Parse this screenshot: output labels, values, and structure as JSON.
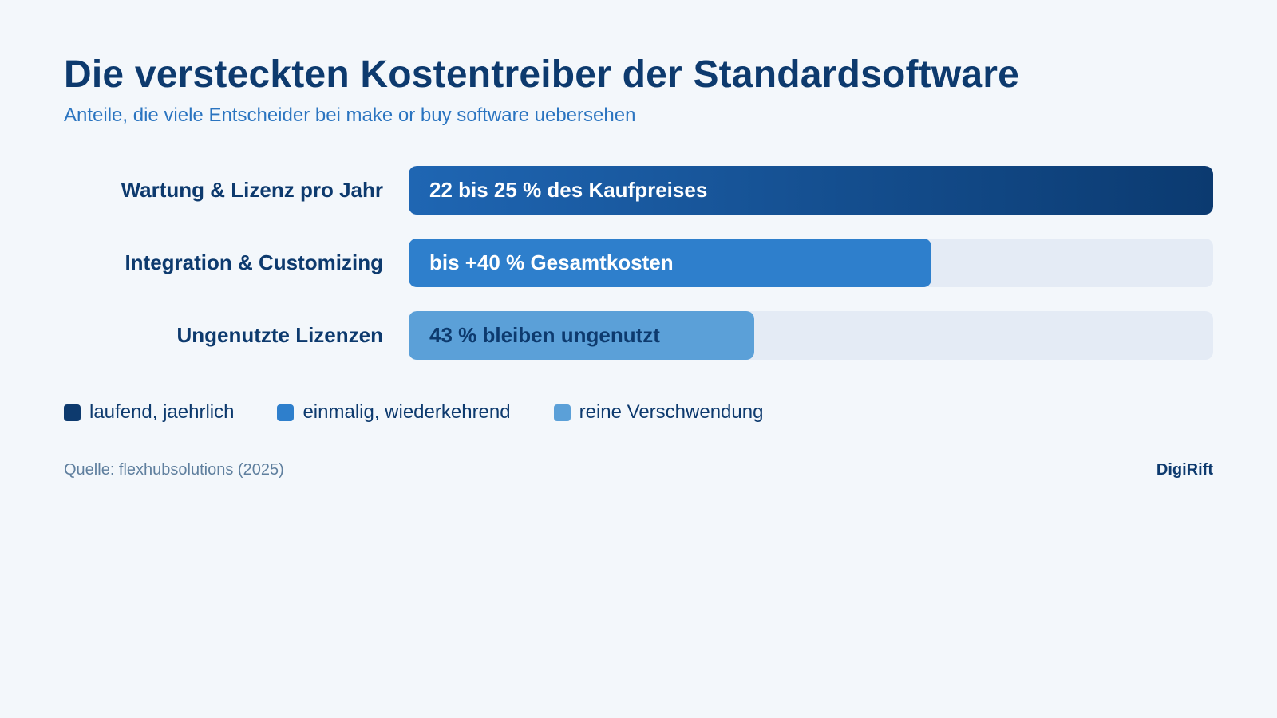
{
  "title": "Die versteckten Kostentreiber der Standardsoftware",
  "subtitle": "Anteile, die viele Entscheider bei make or buy software uebersehen",
  "chart_data": {
    "type": "bar",
    "orientation": "horizontal",
    "title": "Die versteckten Kostentreiber der Standardsoftware",
    "categories": [
      "Wartung & Lizenz pro Jahr",
      "Integration & Customizing",
      "Ungenutzte Lizenzen"
    ],
    "values": [
      100,
      65,
      43
    ],
    "bar_labels": [
      "22 bis 25 % des Kaufpreises",
      "bis +40 % Gesamtkosten",
      "43 % bleiben ungenutzt"
    ],
    "xlim": [
      0,
      100
    ],
    "grid": false,
    "legend": [
      "laufend, jaehrlich",
      "einmalig, wiederkehrend",
      "reine Verschwendung"
    ],
    "legend_position": "bottom-left",
    "colors": [
      "#0d3a6e",
      "#2e7fcc",
      "#5ba0d8"
    ]
  },
  "rows": [
    {
      "label": "Wartung & Lizenz pro Jahr",
      "bar_text": "22 bis 25 % des Kaufpreises",
      "fill": 100,
      "color_from": "#1f66b3",
      "color_to": "#0b3a70",
      "text_color": "#ffffff"
    },
    {
      "label": "Integration & Customizing",
      "bar_text": "bis +40 % Gesamtkosten",
      "fill": 65,
      "color_from": "#2e7fcc",
      "color_to": "#2e7fcc",
      "text_color": "#ffffff"
    },
    {
      "label": "Ungenutzte Lizenzen",
      "bar_text": "43 % bleiben ungenutzt",
      "fill": 43,
      "color_from": "#5ba0d8",
      "color_to": "#5ba0d8",
      "text_color": "#0d3a6e"
    }
  ],
  "legend": [
    {
      "label": "laufend, jaehrlich",
      "color": "#0d3a6e"
    },
    {
      "label": "einmalig, wiederkehrend",
      "color": "#2e7fcc"
    },
    {
      "label": "reine Verschwendung",
      "color": "#5ba0d8"
    }
  ],
  "source": "Quelle: flexhubsolutions (2025)",
  "brand": "DigiRift"
}
